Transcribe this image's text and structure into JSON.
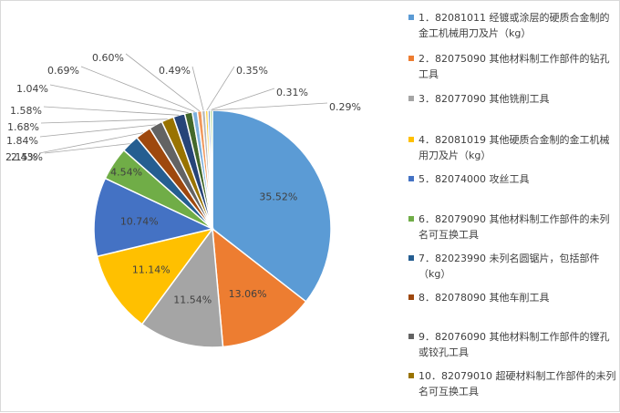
{
  "chart_data": {
    "type": "pie",
    "slices": [
      {
        "legend": "1．82081011 经镀或涂层的硬质合金制的金工机械用刀及片（kg）",
        "value": 35.52,
        "label": "35.52%",
        "color": "#5b9bd5"
      },
      {
        "legend": "2．82075090 其他材料制工作部件的钻孔工具",
        "value": 13.06,
        "label": "13.06%",
        "color": "#ed7d31"
      },
      {
        "legend": "3．82077090 其他铣削工具",
        "value": 11.54,
        "label": "11.54%",
        "color": "#a5a5a5"
      },
      {
        "legend": "4．82081019 其他硬质合金制的金工机械用刀及片（kg）",
        "value": 11.14,
        "label": "11.14%",
        "color": "#ffc000"
      },
      {
        "legend": "5．82074000 攻丝工具",
        "value": 10.74,
        "label": "10.74%",
        "color": "#4472c4"
      },
      {
        "legend": "6．82079090 其他材料制工作部件的未列名可互换工具",
        "value": 4.54,
        "label": "4.54%",
        "color": "#70ad47"
      },
      {
        "legend": "7．82023990 未列名圆锯片，包括部件（kg）",
        "value": 2.43,
        "label": "2.43%",
        "color": "#255e91"
      },
      {
        "legend": "8．82078090 其他车削工具",
        "value": 2.15,
        "label": "2.15%",
        "color": "#9e480e"
      },
      {
        "legend": "9．82076090 其他材料制工作部件的镗孔或铰孔工具",
        "value": 1.84,
        "label": "1.84%",
        "color": "#636363"
      },
      {
        "legend": "10．82079010 超硬材料制工作部件的未列名可互换工具",
        "value": 1.68,
        "label": "1.68%",
        "color": "#997300"
      },
      {
        "legend": "",
        "value": 1.58,
        "label": "1.58%",
        "color": "#264478"
      },
      {
        "legend": "",
        "value": 1.04,
        "label": "1.04%",
        "color": "#43682b"
      },
      {
        "legend": "",
        "value": 0.69,
        "label": "0.69%",
        "color": "#7cafdd"
      },
      {
        "legend": "",
        "value": 0.6,
        "label": "0.60%",
        "color": "#f1975a"
      },
      {
        "legend": "",
        "value": 0.49,
        "label": "0.49%",
        "color": "#b7b7b7"
      },
      {
        "legend": "",
        "value": 0.35,
        "label": "0.35%",
        "color": "#ffcd33"
      },
      {
        "legend": "",
        "value": 0.31,
        "label": "0.31%",
        "color": "#698ed0"
      },
      {
        "legend": "",
        "value": 0.29,
        "label": "0.29%",
        "color": "#8cc168"
      }
    ],
    "start": "12 o'clock, clockwise",
    "legend_position": "right"
  }
}
